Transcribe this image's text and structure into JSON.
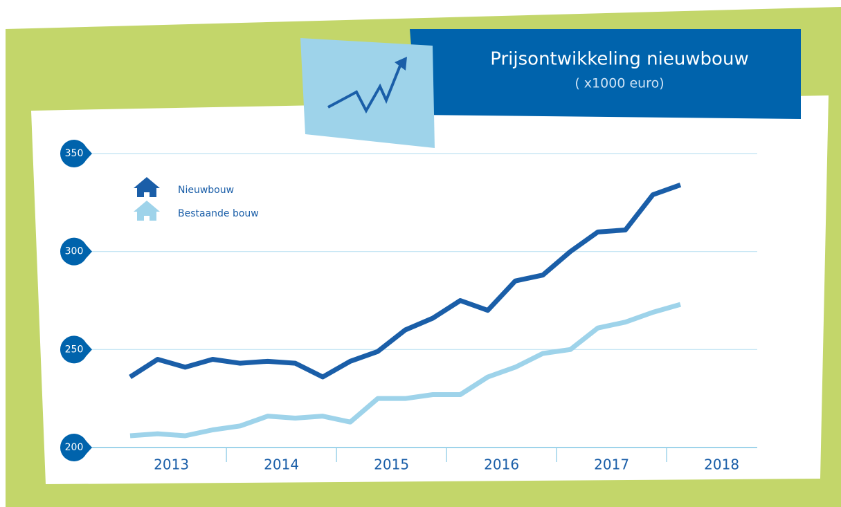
{
  "chart_data": {
    "type": "line",
    "title": "Prijsontwikkeling nieuwbouw",
    "subtitle": "( x1000 euro)",
    "years": [
      "2013",
      "2014",
      "2015",
      "2016",
      "2017",
      "2018"
    ],
    "series": [
      {
        "name": "Nieuwbouw",
        "color": "#1a5ea8",
        "values": [
          236,
          245,
          241,
          245,
          243,
          244,
          243,
          236,
          244,
          249,
          260,
          266,
          275,
          270,
          285,
          288,
          300,
          310,
          311,
          329,
          334
        ]
      },
      {
        "name": "Bestaande bouw",
        "color": "#9ed3ea",
        "values": [
          206,
          207,
          206,
          209,
          211,
          216,
          215,
          216,
          213,
          225,
          225,
          227,
          227,
          236,
          241,
          248,
          250,
          261,
          264,
          269,
          273
        ]
      }
    ],
    "ylim": [
      200,
      350
    ],
    "yticks": [
      200,
      250,
      300,
      350
    ],
    "grid": true
  }
}
